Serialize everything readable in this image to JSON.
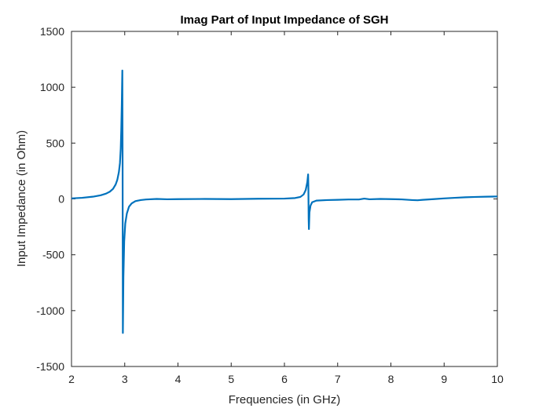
{
  "chart_data": {
    "type": "line",
    "title": "Imag Part of Input Impedance of SGH",
    "xlabel": "Frequencies (in GHz)",
    "ylabel": "Input Impedance (in Ohm)",
    "xlim": [
      2,
      10
    ],
    "ylim": [
      -1500,
      1500
    ],
    "xticks": [
      "2",
      "3",
      "4",
      "5",
      "6",
      "7",
      "8",
      "9",
      "10"
    ],
    "yticks": [
      "1500",
      "1000",
      "500",
      "0",
      "-500",
      "-1000",
      "-1500"
    ],
    "grid": false,
    "line_color": "#0072BD",
    "series": [
      {
        "values": [
          [
            2.0,
            5
          ],
          [
            2.2,
            10
          ],
          [
            2.4,
            20
          ],
          [
            2.55,
            33
          ],
          [
            2.65,
            48
          ],
          [
            2.72,
            65
          ],
          [
            2.78,
            90
          ],
          [
            2.83,
            130
          ],
          [
            2.86,
            170
          ],
          [
            2.89,
            240
          ],
          [
            2.91,
            320
          ],
          [
            2.925,
            450
          ],
          [
            2.935,
            620
          ],
          [
            2.945,
            850
          ],
          [
            2.955,
            1150
          ],
          [
            2.96,
            300
          ],
          [
            2.965,
            -1200
          ],
          [
            2.975,
            -700
          ],
          [
            2.99,
            -380
          ],
          [
            3.01,
            -220
          ],
          [
            3.04,
            -130
          ],
          [
            3.08,
            -70
          ],
          [
            3.13,
            -40
          ],
          [
            3.2,
            -20
          ],
          [
            3.3,
            -10
          ],
          [
            3.4,
            -5
          ],
          [
            3.6,
            0
          ],
          [
            3.8,
            -3
          ],
          [
            4.0,
            -2
          ],
          [
            4.5,
            0
          ],
          [
            5.0,
            -2
          ],
          [
            5.5,
            2
          ],
          [
            6.0,
            3
          ],
          [
            6.2,
            8
          ],
          [
            6.3,
            18
          ],
          [
            6.36,
            40
          ],
          [
            6.4,
            80
          ],
          [
            6.43,
            150
          ],
          [
            6.445,
            220
          ],
          [
            6.45,
            100
          ],
          [
            6.455,
            -180
          ],
          [
            6.46,
            -270
          ],
          [
            6.47,
            -120
          ],
          [
            6.49,
            -60
          ],
          [
            6.52,
            -30
          ],
          [
            6.6,
            -15
          ],
          [
            6.8,
            -10
          ],
          [
            7.0,
            -8
          ],
          [
            7.2,
            -5
          ],
          [
            7.4,
            -5
          ],
          [
            7.5,
            3
          ],
          [
            7.6,
            -3
          ],
          [
            7.8,
            0
          ],
          [
            8.0,
            -2
          ],
          [
            8.2,
            -4
          ],
          [
            8.4,
            -10
          ],
          [
            8.5,
            -12
          ],
          [
            8.6,
            -8
          ],
          [
            8.8,
            -2
          ],
          [
            9.0,
            5
          ],
          [
            9.2,
            10
          ],
          [
            9.4,
            15
          ],
          [
            9.6,
            18
          ],
          [
            9.8,
            20
          ],
          [
            10.0,
            22
          ]
        ]
      }
    ]
  }
}
